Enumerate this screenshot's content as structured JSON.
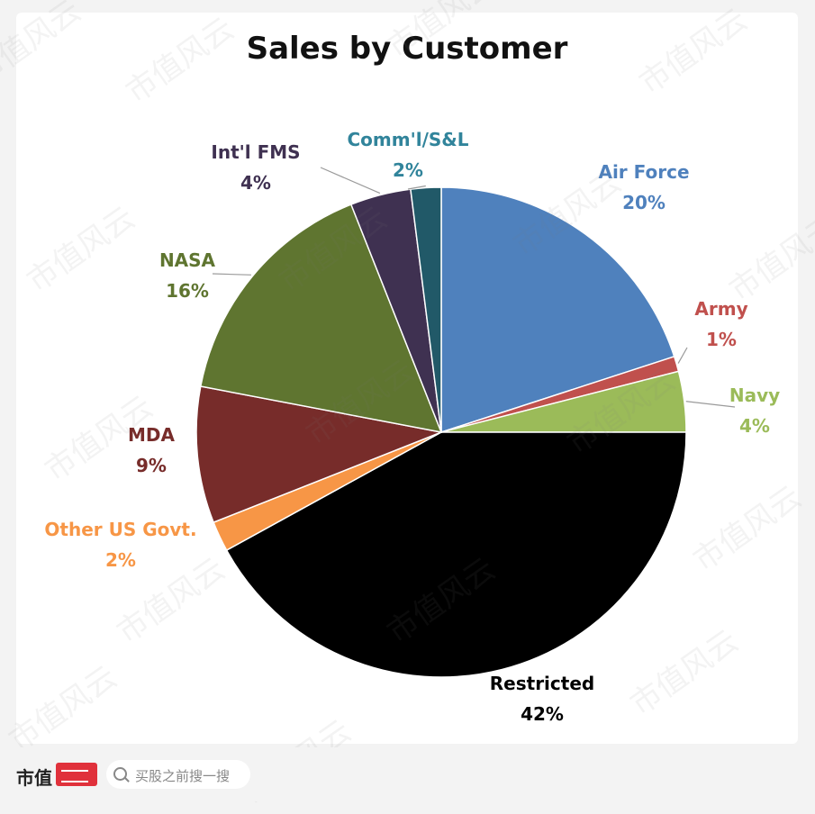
{
  "chart_data": {
    "type": "pie",
    "title": "Sales by Customer",
    "slices": [
      {
        "name": "Air Force",
        "value": 20,
        "label": "20%",
        "color": "#4f81bd",
        "label_color": "#4f81bd"
      },
      {
        "name": "Army",
        "value": 1,
        "label": "1%",
        "color": "#c0504d",
        "label_color": "#c0504d"
      },
      {
        "name": "Navy",
        "value": 4,
        "label": "4%",
        "color": "#9bbb59",
        "label_color": "#9bbb59"
      },
      {
        "name": "Restricted",
        "value": 42,
        "label": "42%",
        "color": "#000000",
        "label_color": "#000000"
      },
      {
        "name": "Other US Govt.",
        "value": 2,
        "label": "2%",
        "color": "#f79646",
        "label_color": "#f79646"
      },
      {
        "name": "MDA",
        "value": 9,
        "label": "9%",
        "color": "#772c2a",
        "label_color": "#772c2a"
      },
      {
        "name": "NASA",
        "value": 16,
        "label": "16%",
        "color": "#5f7530",
        "label_color": "#5f7530"
      },
      {
        "name": "Int'l FMS",
        "value": 4,
        "label": "4%",
        "color": "#3f3151",
        "label_color": "#3f3151"
      },
      {
        "name": "Comm'l/S&L",
        "value": 2,
        "label": "2%",
        "color": "#215968",
        "label_color": "#31849b"
      }
    ]
  },
  "watermark": "市值风云",
  "footer": {
    "brand": "市值",
    "search_placeholder": "买股之前搜一搜"
  }
}
